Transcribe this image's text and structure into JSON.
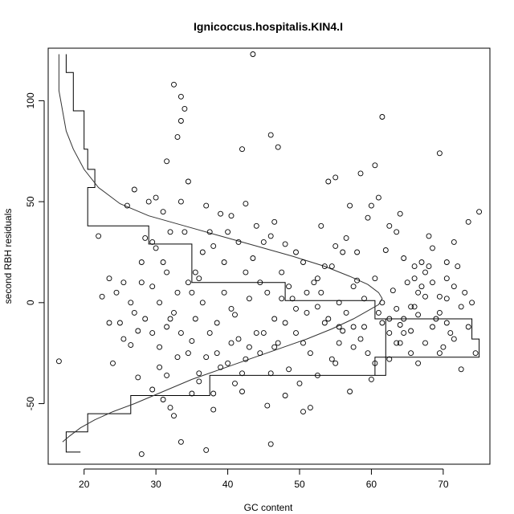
{
  "chart_data": {
    "type": "scatter",
    "title": "Ignicoccus.hospitalis.KIN4.I",
    "xlabel": "GC content",
    "ylabel": "second RBH residuals",
    "xlim": [
      15.0,
      76.5
    ],
    "ylim": [
      -80,
      126
    ],
    "x_ticks": [
      20,
      30,
      40,
      50,
      60,
      70
    ],
    "y_ticks": [
      -50,
      0,
      50,
      100
    ],
    "grid": false,
    "box": true,
    "point_style": "open-circle",
    "points": [
      [
        16.5,
        -29
      ],
      [
        28.0,
        -75
      ],
      [
        37.0,
        -73
      ],
      [
        33.5,
        -69
      ],
      [
        46.0,
        -70
      ],
      [
        45.5,
        -51
      ],
      [
        50.5,
        -54
      ],
      [
        57.0,
        -44
      ],
      [
        60.0,
        -38
      ],
      [
        55.0,
        -30
      ],
      [
        31.0,
        -48
      ],
      [
        32.0,
        -52
      ],
      [
        32.5,
        -56
      ],
      [
        35.0,
        -45
      ],
      [
        38.0,
        -53
      ],
      [
        41.0,
        -40
      ],
      [
        42.0,
        -44
      ],
      [
        36.0,
        -35
      ],
      [
        38.5,
        -25
      ],
      [
        40.5,
        -20
      ],
      [
        42.5,
        -28
      ],
      [
        44.0,
        -15
      ],
      [
        46.5,
        -22
      ],
      [
        48.0,
        -10
      ],
      [
        49.5,
        -3
      ],
      [
        51.0,
        5
      ],
      [
        52.5,
        12
      ],
      [
        54.0,
        -8
      ],
      [
        55.5,
        0
      ],
      [
        57.5,
        -12
      ],
      [
        59.0,
        2
      ],
      [
        61.0,
        -5
      ],
      [
        62.5,
        -15
      ],
      [
        63.5,
        -20
      ],
      [
        64.5,
        -8
      ],
      [
        65.5,
        -2
      ],
      [
        66.5,
        5
      ],
      [
        67.5,
        15
      ],
      [
        68.5,
        10
      ],
      [
        69.5,
        -5
      ],
      [
        70.5,
        2
      ],
      [
        71.5,
        8
      ],
      [
        72.5,
        -2
      ],
      [
        73.5,
        40
      ],
      [
        75.0,
        45
      ],
      [
        71.5,
        30
      ],
      [
        70.5,
        20
      ],
      [
        68.0,
        33
      ],
      [
        67.0,
        20
      ],
      [
        66.0,
        12
      ],
      [
        64.5,
        22
      ],
      [
        62.5,
        38
      ],
      [
        61.0,
        52
      ],
      [
        60.5,
        68
      ],
      [
        61.5,
        92
      ],
      [
        69.5,
        74
      ],
      [
        64.0,
        44
      ],
      [
        59.5,
        42
      ],
      [
        58.0,
        25
      ],
      [
        56.5,
        32
      ],
      [
        55.0,
        28
      ],
      [
        53.5,
        18
      ],
      [
        52.0,
        10
      ],
      [
        50.5,
        20
      ],
      [
        49.5,
        25
      ],
      [
        48.0,
        29
      ],
      [
        46.5,
        40
      ],
      [
        47.0,
        77
      ],
      [
        46.0,
        83
      ],
      [
        43.5,
        123
      ],
      [
        42.0,
        76
      ],
      [
        42.5,
        49
      ],
      [
        40.5,
        43
      ],
      [
        39.0,
        44
      ],
      [
        37.5,
        35
      ],
      [
        36.5,
        25
      ],
      [
        35.5,
        15
      ],
      [
        34.5,
        10
      ],
      [
        33.5,
        50
      ],
      [
        34.0,
        35
      ],
      [
        33.0,
        82
      ],
      [
        33.5,
        90
      ],
      [
        34.0,
        96
      ],
      [
        33.5,
        102
      ],
      [
        31.5,
        70
      ],
      [
        30.0,
        52
      ],
      [
        32.5,
        108
      ],
      [
        34.5,
        60
      ],
      [
        29.5,
        30
      ],
      [
        31.0,
        20
      ],
      [
        28.0,
        10
      ],
      [
        27.0,
        -5
      ],
      [
        25.5,
        -18
      ],
      [
        24.0,
        -30
      ],
      [
        26.5,
        -21
      ],
      [
        27.5,
        -37
      ],
      [
        29.5,
        -43
      ],
      [
        30.5,
        -32
      ],
      [
        31.5,
        -12
      ],
      [
        32.5,
        -5
      ],
      [
        33.0,
        5
      ],
      [
        33.5,
        -15
      ],
      [
        34.5,
        -25
      ],
      [
        35.5,
        -8
      ],
      [
        36.5,
        0
      ],
      [
        37.5,
        -15
      ],
      [
        38.5,
        -10
      ],
      [
        39.5,
        5
      ],
      [
        40.5,
        -3
      ],
      [
        41.5,
        -18
      ],
      [
        42.5,
        15
      ],
      [
        43.5,
        22
      ],
      [
        44.5,
        10
      ],
      [
        45.5,
        5
      ],
      [
        46.5,
        -8
      ],
      [
        47.5,
        15
      ],
      [
        48.5,
        8
      ],
      [
        49.5,
        -15
      ],
      [
        50.5,
        -20
      ],
      [
        51.5,
        -25
      ],
      [
        52.5,
        -2
      ],
      [
        53.5,
        -10
      ],
      [
        54.5,
        -28
      ],
      [
        55.5,
        -20
      ],
      [
        56.5,
        -5
      ],
      [
        57.5,
        8
      ],
      [
        58.5,
        -18
      ],
      [
        59.5,
        -25
      ],
      [
        60.5,
        -30
      ],
      [
        61.5,
        -10
      ],
      [
        62.5,
        -28
      ],
      [
        63.5,
        -3
      ],
      [
        64.5,
        -15
      ],
      [
        65.5,
        -25
      ],
      [
        66.5,
        -30
      ],
      [
        67.5,
        -20
      ],
      [
        68.5,
        -12
      ],
      [
        69.5,
        -25
      ],
      [
        70.5,
        -10
      ],
      [
        71.5,
        -18
      ],
      [
        72.5,
        -33
      ],
      [
        73.5,
        -12
      ],
      [
        74.5,
        -25
      ],
      [
        22.0,
        33
      ],
      [
        22.5,
        3
      ],
      [
        23.5,
        -10
      ],
      [
        25.0,
        -10
      ],
      [
        26.0,
        48
      ],
      [
        27.0,
        56
      ],
      [
        28.0,
        20
      ],
      [
        29.0,
        50
      ],
      [
        30.0,
        27
      ],
      [
        31.0,
        45
      ],
      [
        32.0,
        35
      ],
      [
        35.0,
        5
      ],
      [
        36.0,
        12
      ],
      [
        37.0,
        48
      ],
      [
        38.0,
        28
      ],
      [
        39.5,
        20
      ],
      [
        40.0,
        35
      ],
      [
        41.5,
        30
      ],
      [
        43.0,
        2
      ],
      [
        44.0,
        38
      ],
      [
        45.0,
        30
      ],
      [
        46.0,
        33
      ],
      [
        47.5,
        2
      ],
      [
        48.5,
        -33
      ],
      [
        50.0,
        -40
      ],
      [
        51.5,
        -52
      ],
      [
        53.0,
        38
      ],
      [
        54.0,
        60
      ],
      [
        55.0,
        62
      ],
      [
        56.0,
        25
      ],
      [
        57.0,
        48
      ],
      [
        58.5,
        64
      ],
      [
        60.0,
        48
      ],
      [
        62.0,
        26
      ],
      [
        63.5,
        35
      ],
      [
        65.0,
        10
      ],
      [
        66.0,
        18
      ],
      [
        67.5,
        3
      ],
      [
        68.5,
        27
      ],
      [
        69.5,
        3
      ],
      [
        70.5,
        12
      ],
      [
        72.0,
        18
      ],
      [
        73.0,
        5
      ],
      [
        74.0,
        0
      ],
      [
        66.5,
        -6
      ],
      [
        65.5,
        -14
      ],
      [
        64.0,
        -11
      ],
      [
        62.5,
        -8
      ],
      [
        61.5,
        0
      ],
      [
        59.0,
        -12
      ],
      [
        57.5,
        -22
      ],
      [
        56.0,
        -14
      ],
      [
        54.5,
        18
      ],
      [
        53.0,
        5
      ],
      [
        51.0,
        -5
      ],
      [
        49.0,
        2
      ],
      [
        47.0,
        -20
      ],
      [
        45.0,
        -15
      ],
      [
        43.0,
        -22
      ],
      [
        41.0,
        -6
      ],
      [
        39.0,
        -32
      ],
      [
        37.0,
        -27
      ],
      [
        35.0,
        -19
      ],
      [
        33.0,
        -27
      ],
      [
        31.5,
        -36
      ],
      [
        30.5,
        -22
      ],
      [
        29.5,
        -15
      ],
      [
        28.5,
        -8
      ],
      [
        27.5,
        -14
      ],
      [
        26.5,
        0
      ],
      [
        25.5,
        10
      ],
      [
        24.5,
        5
      ],
      [
        23.5,
        12
      ],
      [
        28.5,
        32
      ],
      [
        29.5,
        8
      ],
      [
        30.5,
        0
      ],
      [
        31.5,
        15
      ],
      [
        32.0,
        -8
      ],
      [
        36.0,
        -39
      ],
      [
        38.0,
        -45
      ],
      [
        40.0,
        -30
      ],
      [
        42.0,
        -35
      ],
      [
        44.5,
        -25
      ],
      [
        46.0,
        -35
      ],
      [
        48.0,
        -46
      ],
      [
        52.5,
        -36
      ],
      [
        55.5,
        -12
      ],
      [
        58.0,
        11
      ],
      [
        60.5,
        12
      ],
      [
        63.0,
        6
      ],
      [
        64.0,
        -20
      ],
      [
        66.0,
        -2
      ],
      [
        67.0,
        8
      ],
      [
        68.0,
        18
      ],
      [
        69.0,
        -8
      ],
      [
        70.0,
        -22
      ],
      [
        71.0,
        -15
      ]
    ],
    "histogram_steps": [
      [
        17.5,
        123
      ],
      [
        17.5,
        114
      ],
      [
        18.5,
        114
      ],
      [
        18.5,
        95
      ],
      [
        20.0,
        95
      ],
      [
        20.0,
        76
      ],
      [
        20.5,
        76
      ],
      [
        20.5,
        66
      ],
      [
        21.5,
        66
      ],
      [
        21.5,
        57
      ],
      [
        20.5,
        57
      ],
      [
        20.5,
        38
      ],
      [
        29.0,
        38
      ],
      [
        29.0,
        29
      ],
      [
        35.0,
        29
      ],
      [
        35.0,
        10
      ],
      [
        48.0,
        10
      ],
      [
        48.0,
        1
      ],
      [
        60.5,
        1
      ],
      [
        60.5,
        -8
      ],
      [
        62.0,
        -8
      ],
      [
        62.0,
        -36
      ],
      [
        60.5,
        -36
      ],
      [
        60.5,
        -27
      ],
      [
        75.0,
        -27
      ],
      [
        75.0,
        -18
      ],
      [
        74.0,
        -18
      ],
      [
        74.0,
        -8
      ],
      [
        62.0,
        -8
      ],
      [
        62.0,
        -36
      ],
      [
        37.5,
        -36
      ],
      [
        37.5,
        -46
      ],
      [
        26.5,
        -46
      ],
      [
        26.5,
        -55
      ],
      [
        20.5,
        -55
      ],
      [
        20.5,
        -64
      ],
      [
        17.5,
        -64
      ],
      [
        17.5,
        -74
      ],
      [
        19.5,
        -74
      ]
    ],
    "curve": [
      [
        17.0,
        -69
      ],
      [
        18.0,
        -66
      ],
      [
        19.5,
        -62
      ],
      [
        21.5,
        -58
      ],
      [
        24.0,
        -54
      ],
      [
        27.0,
        -50
      ],
      [
        31.0,
        -44
      ],
      [
        35.0,
        -38
      ],
      [
        39.0,
        -33
      ],
      [
        43.0,
        -28
      ],
      [
        47.0,
        -23
      ],
      [
        51.0,
        -18
      ],
      [
        54.5,
        -13
      ],
      [
        57.5,
        -8
      ],
      [
        59.5,
        -4
      ],
      [
        61.0,
        -1
      ],
      [
        61.5,
        2
      ],
      [
        61.0,
        5
      ],
      [
        59.5,
        9
      ],
      [
        57.0,
        13
      ],
      [
        53.5,
        18
      ],
      [
        49.0,
        23
      ],
      [
        44.0,
        28
      ],
      [
        39.0,
        33
      ],
      [
        34.0,
        38
      ],
      [
        29.0,
        43
      ],
      [
        25.0,
        49
      ],
      [
        22.0,
        57
      ],
      [
        20.0,
        66
      ],
      [
        18.5,
        76
      ],
      [
        17.5,
        85
      ],
      [
        17.0,
        95
      ],
      [
        16.5,
        105
      ],
      [
        16.5,
        115
      ],
      [
        16.5,
        123
      ]
    ]
  }
}
